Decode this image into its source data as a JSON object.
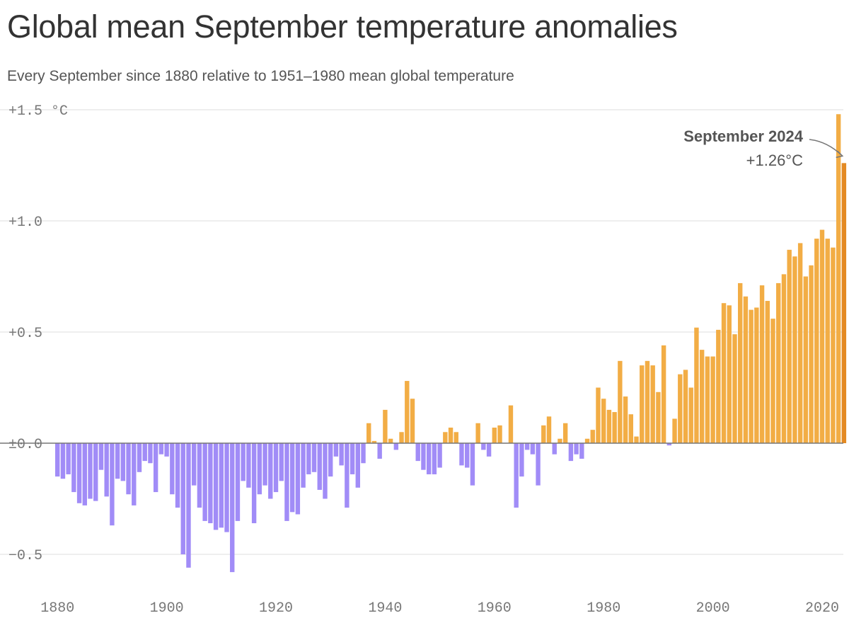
{
  "chart_data": {
    "type": "bar",
    "title": "Global mean September temperature anomalies",
    "subtitle": "Every September since 1880 relative to 1951–1980 mean global temperature",
    "x_start": 1880,
    "x_end": 2024,
    "ylim": [
      -0.6,
      1.5
    ],
    "yticks": [
      {
        "value": 1.5,
        "label": "+1.5 °C"
      },
      {
        "value": 1.0,
        "label": "+1.0"
      },
      {
        "value": 0.5,
        "label": "+0.5"
      },
      {
        "value": 0.0,
        "label": "±0.0"
      },
      {
        "value": -0.5,
        "label": "−0.5"
      }
    ],
    "xticks": [
      1880,
      1900,
      1920,
      1940,
      1960,
      1980,
      2000,
      2020
    ],
    "grid": true,
    "colors": {
      "negative": "#a18cf7",
      "positive": "#f2ad45",
      "highlight": "#e48a23",
      "grid": "#dddddd",
      "baseline": "#777777"
    },
    "values": [
      -0.15,
      -0.16,
      -0.14,
      -0.22,
      -0.27,
      -0.28,
      -0.25,
      -0.26,
      -0.12,
      -0.24,
      -0.37,
      -0.16,
      -0.17,
      -0.23,
      -0.28,
      -0.13,
      -0.08,
      -0.09,
      -0.22,
      -0.05,
      -0.06,
      -0.23,
      -0.29,
      -0.5,
      -0.56,
      -0.19,
      -0.29,
      -0.35,
      -0.36,
      -0.39,
      -0.38,
      -0.4,
      -0.58,
      -0.35,
      -0.17,
      -0.2,
      -0.36,
      -0.23,
      -0.19,
      -0.25,
      -0.22,
      -0.17,
      -0.35,
      -0.31,
      -0.32,
      -0.2,
      -0.14,
      -0.13,
      -0.21,
      -0.25,
      -0.15,
      -0.06,
      -0.1,
      -0.29,
      -0.14,
      -0.2,
      -0.09,
      0.09,
      0.01,
      -0.07,
      0.15,
      0.02,
      -0.03,
      0.05,
      0.28,
      0.2,
      -0.08,
      -0.12,
      -0.14,
      -0.14,
      -0.11,
      0.05,
      0.07,
      0.05,
      -0.1,
      -0.11,
      -0.19,
      0.09,
      -0.03,
      -0.06,
      0.07,
      0.08,
      0.0,
      0.17,
      -0.29,
      -0.15,
      -0.03,
      -0.05,
      -0.19,
      0.08,
      0.12,
      -0.05,
      0.02,
      0.09,
      -0.08,
      -0.05,
      -0.07,
      0.02,
      0.06,
      0.25,
      0.2,
      0.15,
      0.14,
      0.37,
      0.21,
      0.13,
      0.03,
      0.35,
      0.37,
      0.35,
      0.23,
      0.44,
      -0.01,
      0.11,
      0.31,
      0.33,
      0.25,
      0.52,
      0.42,
      0.39,
      0.39,
      0.51,
      0.63,
      0.62,
      0.49,
      0.72,
      0.66,
      0.6,
      0.61,
      0.71,
      0.64,
      0.56,
      0.72,
      0.76,
      0.87,
      0.84,
      0.9,
      0.75,
      0.8,
      0.92,
      0.96,
      0.92,
      0.88,
      1.48,
      1.26
    ],
    "annotation": {
      "year": 2024,
      "title": "September 2024",
      "value_label": "+1.26°C"
    }
  }
}
